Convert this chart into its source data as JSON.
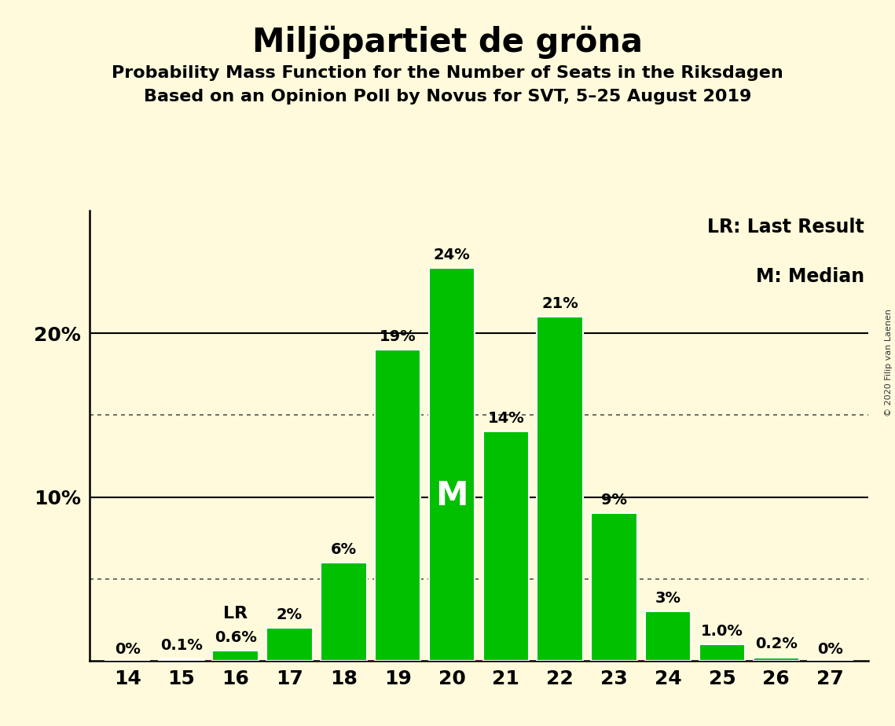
{
  "title": "Miljöpartiet de gröna",
  "subtitle1": "Probability Mass Function for the Number of Seats in the Riksdagen",
  "subtitle2": "Based on an Opinion Poll by Novus for SVT, 5–25 August 2019",
  "copyright": "© 2020 Filip van Laenen",
  "legend_lr": "LR: Last Result",
  "legend_m": "M: Median",
  "seats": [
    14,
    15,
    16,
    17,
    18,
    19,
    20,
    21,
    22,
    23,
    24,
    25,
    26,
    27
  ],
  "probabilities": [
    0.0,
    0.1,
    0.6,
    2.0,
    6.0,
    19.0,
    24.0,
    14.0,
    21.0,
    9.0,
    3.0,
    1.0,
    0.2,
    0.0
  ],
  "bar_labels": [
    "0%",
    "0.1%",
    "0.6%",
    "2%",
    "6%",
    "19%",
    "24%",
    "14%",
    "21%",
    "9%",
    "3%",
    "1.0%",
    "0.2%",
    "0%"
  ],
  "bar_color": "#00C000",
  "bar_edge_color": "#ffffff",
  "background_color": "#FFFADC",
  "last_result_seat": 16,
  "median_seat": 20,
  "median_label": "M",
  "lr_label": "LR",
  "solid_gridlines": [
    10.0,
    20.0
  ],
  "dotted_gridlines": [
    5.0,
    15.0
  ],
  "title_fontsize": 30,
  "subtitle_fontsize": 16,
  "axis_fontsize": 18,
  "bar_label_fontsize": 14,
  "legend_fontsize": 17,
  "median_label_fontsize": 30,
  "lr_label_fontsize": 16,
  "ylim": [
    0,
    27.5
  ],
  "xlim_left": 13.3,
  "xlim_right": 27.7
}
